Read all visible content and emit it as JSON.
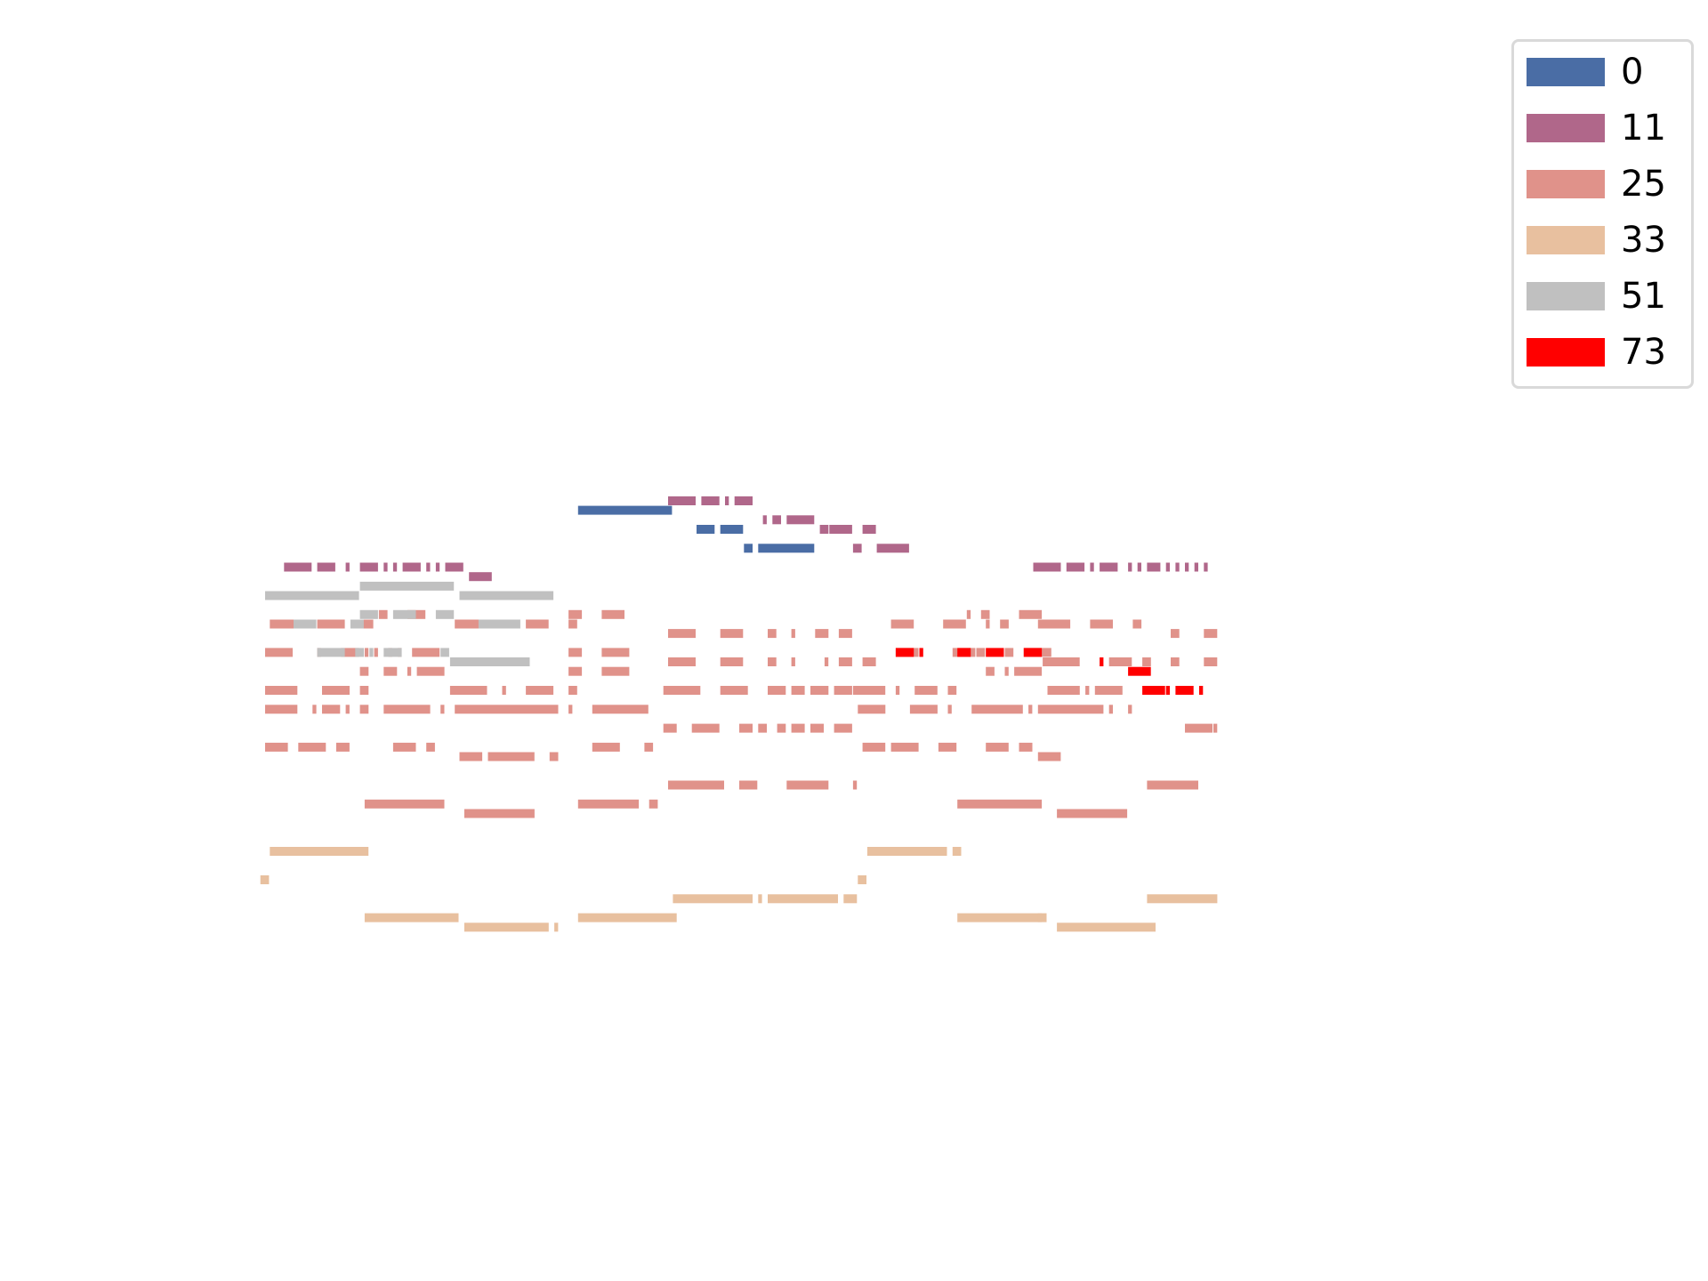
{
  "chart_data": {
    "type": "piano-roll",
    "title": "",
    "xlabel": "",
    "ylabel": "",
    "axes_visible": false,
    "grid": false,
    "legend_placement": "top-right",
    "x_unit": "time step",
    "y_unit": "pitch",
    "xlim": [
      0,
      200
    ],
    "ylim": [
      0,
      84
    ],
    "series": [
      {
        "name": "0",
        "color": "#4a6da5",
        "notes": [
          [
            66,
            20,
            60
          ],
          [
            91,
            4,
            58
          ],
          [
            96,
            5,
            58
          ],
          [
            101,
            2,
            56
          ],
          [
            104,
            12,
            56
          ]
        ]
      },
      {
        "name": "11",
        "color": "#b0678a",
        "notes": [
          [
            85,
            6,
            61
          ],
          [
            92,
            4,
            61
          ],
          [
            97,
            1,
            61
          ],
          [
            99,
            4,
            61
          ],
          [
            105,
            1,
            59
          ],
          [
            107,
            2,
            59
          ],
          [
            110,
            6,
            59
          ],
          [
            117,
            2,
            58
          ],
          [
            119,
            5,
            58
          ],
          [
            126,
            3,
            58
          ],
          [
            124,
            2,
            56
          ],
          [
            129,
            7,
            56
          ],
          [
            4,
            6,
            54
          ],
          [
            11,
            4,
            54
          ],
          [
            17,
            1,
            54
          ],
          [
            20,
            4,
            54
          ],
          [
            25,
            1,
            54
          ],
          [
            27,
            1,
            54
          ],
          [
            29,
            4,
            54
          ],
          [
            34,
            1,
            54
          ],
          [
            36,
            1,
            54
          ],
          [
            38,
            4,
            54
          ],
          [
            43,
            5,
            53
          ],
          [
            162,
            6,
            54
          ],
          [
            169,
            4,
            54
          ],
          [
            174,
            1,
            54
          ],
          [
            176,
            4,
            54
          ],
          [
            182,
            1,
            54
          ],
          [
            184,
            1,
            54
          ],
          [
            186,
            3,
            54
          ],
          [
            190,
            1,
            54
          ],
          [
            192,
            1,
            54
          ],
          [
            194,
            1,
            54
          ],
          [
            196,
            1,
            54
          ],
          [
            198,
            1,
            54
          ]
        ]
      },
      {
        "name": "25",
        "color": "#e0928a",
        "notes": [
          [
            1,
            6,
            48
          ],
          [
            11,
            6,
            48
          ],
          [
            20,
            3,
            48
          ],
          [
            40,
            6,
            48
          ],
          [
            55,
            5,
            48
          ],
          [
            64,
            2,
            48
          ],
          [
            24,
            2,
            49
          ],
          [
            30,
            4,
            49
          ],
          [
            64,
            3,
            49
          ],
          [
            71,
            5,
            49
          ],
          [
            132,
            5,
            48
          ],
          [
            143,
            5,
            48
          ],
          [
            152,
            1,
            48
          ],
          [
            155,
            2,
            48
          ],
          [
            163,
            7,
            48
          ],
          [
            174,
            5,
            48
          ],
          [
            183,
            2,
            48
          ],
          [
            148,
            1,
            49
          ],
          [
            151,
            2,
            49
          ],
          [
            159,
            5,
            49
          ],
          [
            85,
            6,
            47
          ],
          [
            96,
            5,
            47
          ],
          [
            106,
            2,
            47
          ],
          [
            111,
            1,
            47
          ],
          [
            116,
            3,
            47
          ],
          [
            121,
            3,
            47
          ],
          [
            191,
            2,
            47
          ],
          [
            198,
            3,
            47
          ],
          [
            0,
            6,
            45
          ],
          [
            11,
            1,
            45
          ],
          [
            16,
            4,
            45
          ],
          [
            21,
            1,
            45
          ],
          [
            23,
            1,
            45
          ],
          [
            26,
            1,
            45
          ],
          [
            28,
            1,
            45
          ],
          [
            31,
            6,
            45
          ],
          [
            64,
            3,
            45
          ],
          [
            71,
            6,
            45
          ],
          [
            133,
            5,
            45
          ],
          [
            145,
            5,
            45
          ],
          [
            150,
            2,
            45
          ],
          [
            156,
            2,
            45
          ],
          [
            160,
            6,
            45
          ],
          [
            85,
            6,
            44
          ],
          [
            96,
            5,
            44
          ],
          [
            106,
            2,
            44
          ],
          [
            111,
            1,
            44
          ],
          [
            118,
            1,
            44
          ],
          [
            121,
            3,
            44
          ],
          [
            126,
            3,
            44
          ],
          [
            164,
            8,
            44
          ],
          [
            178,
            5,
            44
          ],
          [
            185,
            2,
            44
          ],
          [
            191,
            2,
            44
          ],
          [
            198,
            3,
            44
          ],
          [
            20,
            2,
            43
          ],
          [
            25,
            3,
            43
          ],
          [
            30,
            1,
            43
          ],
          [
            32,
            6,
            43
          ],
          [
            64,
            3,
            43
          ],
          [
            71,
            6,
            43
          ],
          [
            152,
            2,
            43
          ],
          [
            156,
            1,
            43
          ],
          [
            158,
            6,
            43
          ],
          [
            0,
            7,
            41
          ],
          [
            12,
            6,
            41
          ],
          [
            20,
            2,
            41
          ],
          [
            39,
            8,
            41
          ],
          [
            50,
            1,
            41
          ],
          [
            55,
            6,
            41
          ],
          [
            64,
            2,
            41
          ],
          [
            84,
            8,
            41
          ],
          [
            96,
            6,
            41
          ],
          [
            106,
            4,
            41
          ],
          [
            111,
            3,
            41
          ],
          [
            115,
            4,
            41
          ],
          [
            120,
            4,
            41
          ],
          [
            124,
            7,
            41
          ],
          [
            133,
            1,
            41
          ],
          [
            137,
            5,
            41
          ],
          [
            144,
            2,
            41
          ],
          [
            165,
            7,
            41
          ],
          [
            173,
            1,
            41
          ],
          [
            175,
            6,
            41
          ],
          [
            0,
            7,
            39
          ],
          [
            10,
            1,
            39
          ],
          [
            12,
            4,
            39
          ],
          [
            17,
            1,
            39
          ],
          [
            20,
            2,
            39
          ],
          [
            25,
            10,
            39
          ],
          [
            37,
            1,
            39
          ],
          [
            40,
            22,
            39
          ],
          [
            64,
            1,
            39
          ],
          [
            69,
            12,
            39
          ],
          [
            125,
            6,
            39
          ],
          [
            136,
            6,
            39
          ],
          [
            144,
            1,
            39
          ],
          [
            149,
            11,
            39
          ],
          [
            161,
            1,
            39
          ],
          [
            163,
            14,
            39
          ],
          [
            178,
            1,
            39
          ],
          [
            182,
            1,
            39
          ],
          [
            84,
            3,
            37
          ],
          [
            90,
            6,
            37
          ],
          [
            100,
            3,
            37
          ],
          [
            104,
            2,
            37
          ],
          [
            108,
            2,
            37
          ],
          [
            111,
            3,
            37
          ],
          [
            115,
            3,
            37
          ],
          [
            120,
            4,
            37
          ],
          [
            194,
            6,
            37
          ],
          [
            200,
            1,
            37
          ],
          [
            0,
            5,
            35
          ],
          [
            7,
            6,
            35
          ],
          [
            15,
            3,
            35
          ],
          [
            27,
            5,
            35
          ],
          [
            34,
            2,
            35
          ],
          [
            69,
            6,
            35
          ],
          [
            80,
            2,
            35
          ],
          [
            126,
            5,
            35
          ],
          [
            132,
            6,
            35
          ],
          [
            142,
            4,
            35
          ],
          [
            152,
            5,
            35
          ],
          [
            159,
            3,
            35
          ],
          [
            41,
            5,
            34
          ],
          [
            47,
            10,
            34
          ],
          [
            60,
            2,
            34
          ],
          [
            163,
            5,
            34
          ],
          [
            85,
            12,
            31
          ],
          [
            100,
            4,
            31
          ],
          [
            110,
            9,
            31
          ],
          [
            124,
            1,
            31
          ],
          [
            186,
            11,
            31
          ],
          [
            21,
            17,
            29
          ],
          [
            66,
            13,
            29
          ],
          [
            81,
            2,
            29
          ],
          [
            146,
            18,
            29
          ],
          [
            42,
            15,
            28
          ],
          [
            167,
            15,
            28
          ]
        ]
      },
      {
        "name": "33",
        "color": "#e8c09f",
        "notes": [
          [
            1,
            21,
            24
          ],
          [
            127,
            17,
            24
          ],
          [
            145,
            2,
            24
          ],
          [
            -1,
            2,
            21
          ],
          [
            125,
            2,
            21
          ],
          [
            86,
            17,
            19
          ],
          [
            104,
            1,
            19
          ],
          [
            106,
            15,
            19
          ],
          [
            122,
            3,
            19
          ],
          [
            186,
            15,
            19
          ],
          [
            21,
            20,
            17
          ],
          [
            66,
            21,
            17
          ],
          [
            146,
            18,
            17
          ],
          [
            163,
            2,
            17
          ],
          [
            42,
            18,
            16
          ],
          [
            61,
            1,
            16
          ],
          [
            167,
            21,
            16
          ]
        ]
      },
      {
        "name": "51",
        "color": "#c0c0c0",
        "notes": [
          [
            0,
            20,
            51
          ],
          [
            41,
            20,
            51
          ],
          [
            20,
            20,
            52
          ],
          [
            20,
            4,
            49
          ],
          [
            27,
            5,
            49
          ],
          [
            36,
            4,
            49
          ],
          [
            6,
            5,
            48
          ],
          [
            18,
            3,
            48
          ],
          [
            45,
            9,
            48
          ],
          [
            11,
            6,
            45
          ],
          [
            19,
            2,
            45
          ],
          [
            22,
            1,
            45
          ],
          [
            25,
            4,
            45
          ],
          [
            37,
            2,
            45
          ],
          [
            39,
            17,
            44
          ]
        ]
      },
      {
        "name": "73",
        "color": "#ff0000",
        "notes": [
          [
            133,
            4,
            45
          ],
          [
            138,
            1,
            45
          ],
          [
            146,
            3,
            45
          ],
          [
            152,
            4,
            45
          ],
          [
            160,
            4,
            45
          ],
          [
            176,
            1,
            44
          ],
          [
            182,
            5,
            43
          ],
          [
            185,
            5,
            41
          ],
          [
            190,
            1,
            41
          ],
          [
            192,
            4,
            41
          ],
          [
            197,
            1,
            41
          ]
        ]
      }
    ]
  }
}
